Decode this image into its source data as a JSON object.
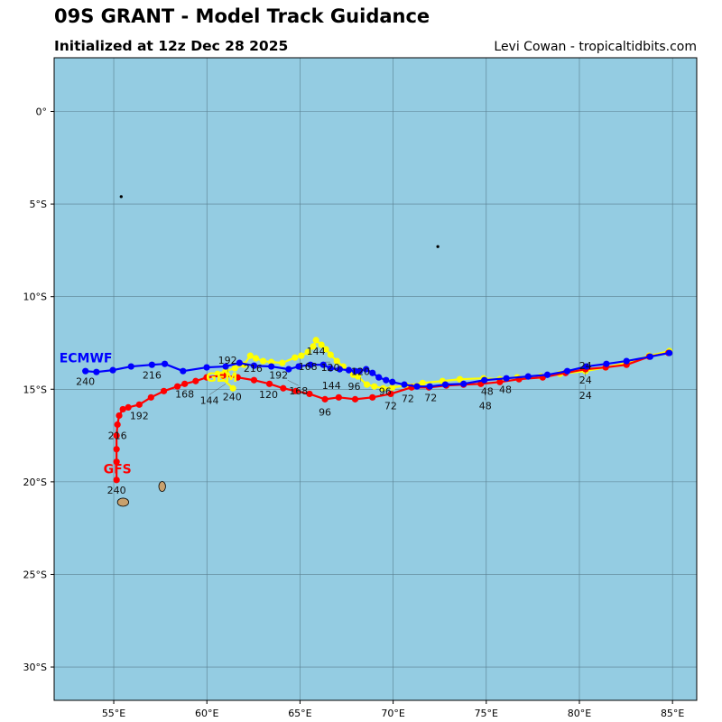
{
  "header": {
    "title": "09S GRANT - Model Track Guidance",
    "subtitle": "Initialized at 12z Dec 28 2025",
    "credit": "Levi Cowan - tropicaltidbits.com"
  },
  "map": {
    "lon_range": [
      51.8,
      86.3
    ],
    "lat_range": [
      -31.8,
      2.9
    ],
    "ocean_color": "#94cce2",
    "land_color": "#c8a16e",
    "grid_color": "#5a7f8f",
    "x_ticks": [
      {
        "value": 55,
        "label": "55°E"
      },
      {
        "value": 60,
        "label": "60°E"
      },
      {
        "value": 65,
        "label": "65°E"
      },
      {
        "value": 70,
        "label": "70°E"
      },
      {
        "value": 75,
        "label": "75°E"
      },
      {
        "value": 80,
        "label": "80°E"
      },
      {
        "value": 85,
        "label": "85°E"
      }
    ],
    "y_ticks": [
      {
        "value": 0,
        "label": "0°"
      },
      {
        "value": -5,
        "label": "5°S"
      },
      {
        "value": -10,
        "label": "10°S"
      },
      {
        "value": -15,
        "label": "15°S"
      },
      {
        "value": -20,
        "label": "20°S"
      },
      {
        "value": -25,
        "label": "25°S"
      },
      {
        "value": -30,
        "label": "30°S"
      }
    ],
    "islands": [
      {
        "name": "reunion",
        "lon": 55.5,
        "lat": -21.1,
        "rx": 0.3,
        "ry": 0.22,
        "fill": "#c8a16e"
      },
      {
        "name": "mauritius",
        "lon": 57.6,
        "lat": -20.25,
        "rx": 0.18,
        "ry": 0.27,
        "fill": "#c8a16e"
      },
      {
        "name": "islet",
        "lon": 55.4,
        "lat": -4.6,
        "rx": 0.06,
        "ry": 0.06,
        "fill": "#000"
      },
      {
        "name": "islet",
        "lon": 72.4,
        "lat": -7.3,
        "rx": 0.06,
        "ry": 0.06,
        "fill": "#000"
      }
    ]
  },
  "chart_data": {
    "type": "line",
    "title": "09S GRANT - Model Track Guidance",
    "series": [
      {
        "name": "GEM",
        "color": "#ffff00",
        "label_lon": 60.8,
        "label_lat": -14.35,
        "points": [
          [
            84.83,
            -12.94
          ],
          [
            83.75,
            -13.19
          ],
          [
            82.48,
            -13.58
          ],
          [
            81.41,
            -13.82
          ],
          [
            80.33,
            -14.02
          ],
          [
            78.96,
            -14.17
          ],
          [
            77.93,
            -14.31
          ],
          [
            76.66,
            -14.36
          ],
          [
            75.73,
            -14.46
          ],
          [
            74.85,
            -14.41
          ],
          [
            73.58,
            -14.46
          ],
          [
            72.65,
            -14.56
          ],
          [
            71.58,
            -14.66
          ],
          [
            70.7,
            -14.8
          ],
          [
            69.96,
            -14.9
          ],
          [
            69.47,
            -14.95
          ],
          [
            68.99,
            -14.85
          ],
          [
            68.59,
            -14.75
          ],
          [
            68.11,
            -14.31
          ],
          [
            67.86,
            -14.22
          ],
          [
            67.32,
            -13.77
          ],
          [
            66.98,
            -13.48
          ],
          [
            66.64,
            -13.14
          ],
          [
            66.39,
            -12.84
          ],
          [
            66.15,
            -12.6
          ],
          [
            65.86,
            -12.35
          ],
          [
            65.71,
            -12.69
          ],
          [
            65.42,
            -12.99
          ],
          [
            65.07,
            -13.19
          ],
          [
            64.73,
            -13.29
          ],
          [
            64.05,
            -13.58
          ],
          [
            63.46,
            -13.53
          ],
          [
            63.02,
            -13.48
          ],
          [
            62.63,
            -13.33
          ],
          [
            62.33,
            -13.19
          ],
          [
            61.99,
            -13.68
          ],
          [
            61.5,
            -13.87
          ],
          [
            61.01,
            -14.02
          ],
          [
            60.57,
            -14.17
          ],
          [
            61.4,
            -14.95
          ]
        ],
        "labels": [
          {
            "t": "240",
            "lon": 61.36,
            "lat": -15.39
          },
          {
            "t": "216",
            "lon": 62.48,
            "lat": -13.87
          },
          {
            "t": "192",
            "lon": 61.11,
            "lat": -14.31
          },
          {
            "t": "168",
            "lon": 65.42,
            "lat": -13.77
          },
          {
            "t": "144",
            "lon": 65.86,
            "lat": -12.94
          },
          {
            "t": "120",
            "lon": 66.34,
            "lat": -13.53
          },
          {
            "t": "96",
            "lon": 67.91,
            "lat": -14.85
          },
          {
            "t": "72",
            "lon": 72.02,
            "lat": -15.44
          },
          {
            "t": "48",
            "lon": 76.03,
            "lat": -15.0
          },
          {
            "t": "24",
            "lon": 80.33,
            "lat": -14.51
          }
        ]
      },
      {
        "name": "GFS",
        "color": "#ff0000",
        "label_lon": 55.2,
        "label_lat": -19.3,
        "points": [
          [
            84.78,
            -13.04
          ],
          [
            83.75,
            -13.24
          ],
          [
            82.53,
            -13.68
          ],
          [
            81.41,
            -13.82
          ],
          [
            80.33,
            -13.92
          ],
          [
            79.26,
            -14.12
          ],
          [
            78.03,
            -14.36
          ],
          [
            76.76,
            -14.46
          ],
          [
            75.73,
            -14.61
          ],
          [
            74.71,
            -14.71
          ],
          [
            73.78,
            -14.75
          ],
          [
            72.85,
            -14.8
          ],
          [
            71.92,
            -14.9
          ],
          [
            70.99,
            -14.9
          ],
          [
            69.87,
            -15.25
          ],
          [
            68.89,
            -15.44
          ],
          [
            67.96,
            -15.54
          ],
          [
            67.08,
            -15.44
          ],
          [
            66.34,
            -15.54
          ],
          [
            65.51,
            -15.25
          ],
          [
            64.78,
            -15.1
          ],
          [
            64.1,
            -14.95
          ],
          [
            63.36,
            -14.71
          ],
          [
            62.53,
            -14.51
          ],
          [
            61.65,
            -14.36
          ],
          [
            60.87,
            -14.26
          ],
          [
            59.99,
            -14.36
          ],
          [
            59.4,
            -14.56
          ],
          [
            58.81,
            -14.71
          ],
          [
            58.42,
            -14.85
          ],
          [
            57.69,
            -15.1
          ],
          [
            57.0,
            -15.44
          ],
          [
            56.37,
            -15.83
          ],
          [
            55.78,
            -15.98
          ],
          [
            55.49,
            -16.08
          ],
          [
            55.29,
            -16.42
          ],
          [
            55.2,
            -16.91
          ],
          [
            55.15,
            -17.5
          ],
          [
            55.15,
            -18.24
          ],
          [
            55.15,
            -18.92
          ],
          [
            55.15,
            -19.9
          ]
        ],
        "labels": [
          {
            "t": "240",
            "lon": 55.15,
            "lat": -20.44
          },
          {
            "t": "216",
            "lon": 55.2,
            "lat": -17.5
          },
          {
            "t": "192",
            "lon": 56.37,
            "lat": -16.42
          },
          {
            "t": "168",
            "lon": 58.81,
            "lat": -15.25
          },
          {
            "t": "144",
            "lon": 61.01,
            "lat": -14.71
          },
          {
            "t": "120",
            "lon": 63.31,
            "lat": -15.29
          },
          {
            "t": "96",
            "lon": 66.34,
            "lat": -16.23
          },
          {
            "t": "72",
            "lon": 69.87,
            "lat": -15.88
          },
          {
            "t": "48",
            "lon": 75.05,
            "lat": -15.1
          },
          {
            "t": "24",
            "lon": 80.33,
            "lat": -14.75
          }
        ]
      },
      {
        "name": "ECMWF",
        "color": "#0000ff",
        "label_lon": 53.5,
        "label_lat": -13.3,
        "points": [
          [
            84.83,
            -13.04
          ],
          [
            83.8,
            -13.24
          ],
          [
            82.53,
            -13.48
          ],
          [
            81.45,
            -13.63
          ],
          [
            80.38,
            -13.77
          ],
          [
            79.35,
            -14.02
          ],
          [
            78.28,
            -14.22
          ],
          [
            77.25,
            -14.31
          ],
          [
            76.08,
            -14.41
          ],
          [
            74.9,
            -14.51
          ],
          [
            73.78,
            -14.71
          ],
          [
            72.8,
            -14.75
          ],
          [
            71.97,
            -14.85
          ],
          [
            71.28,
            -14.85
          ],
          [
            70.6,
            -14.75
          ],
          [
            69.96,
            -14.61
          ],
          [
            69.62,
            -14.51
          ],
          [
            69.23,
            -14.36
          ],
          [
            68.89,
            -14.12
          ],
          [
            68.55,
            -13.92
          ],
          [
            68.2,
            -14.02
          ],
          [
            67.96,
            -14.02
          ],
          [
            67.62,
            -13.97
          ],
          [
            67.13,
            -13.92
          ],
          [
            66.64,
            -13.87
          ],
          [
            66.25,
            -13.68
          ],
          [
            65.56,
            -13.68
          ],
          [
            64.93,
            -13.77
          ],
          [
            64.39,
            -13.92
          ],
          [
            63.46,
            -13.77
          ],
          [
            62.53,
            -13.73
          ],
          [
            61.75,
            -13.58
          ],
          [
            61.01,
            -13.77
          ],
          [
            59.99,
            -13.82
          ],
          [
            58.72,
            -14.02
          ],
          [
            57.74,
            -13.63
          ],
          [
            57.05,
            -13.68
          ],
          [
            55.93,
            -13.77
          ],
          [
            54.95,
            -13.97
          ],
          [
            54.07,
            -14.07
          ],
          [
            53.48,
            -14.02
          ]
        ],
        "labels": [
          {
            "t": "240",
            "lon": 53.48,
            "lat": -14.56
          },
          {
            "t": "216",
            "lon": 57.05,
            "lat": -14.22
          },
          {
            "t": "192",
            "lon": 63.56,
            "lat": -14.22
          },
          {
            "t": "168",
            "lon": 64.34,
            "lat": -14.51
          },
          {
            "t": "144",
            "lon": 66.69,
            "lat": -14.51
          },
          {
            "t": "120",
            "lon": 68.25,
            "lat": -14.61
          },
          {
            "t": "96",
            "lon": 69.57,
            "lat": -15.1
          },
          {
            "t": "72",
            "lon": 70.79,
            "lat": -15.49
          },
          {
            "t": "48",
            "lon": 74.95,
            "lat": -15.0
          },
          {
            "t": "24",
            "lon": 80.33,
            "lat": -14.31
          }
        ]
      }
    ]
  }
}
